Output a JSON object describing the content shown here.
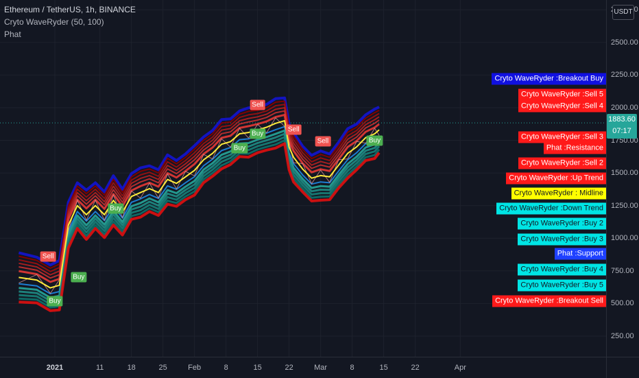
{
  "header": {
    "symbol_line": "Ethereum / TetherUS, 1h, BINANCE",
    "indicator_1": "Cryto WaveRyder  (50, 100)",
    "indicator_2": "Phat"
  },
  "price_axis": {
    "currency": "USDT",
    "current_price": "1883.60",
    "countdown": "07:17"
  },
  "side_labels": [
    {
      "text": "Cryto WaveRyder :Breakout Buy",
      "bg": "#1010e0",
      "fg": "#ffffff",
      "price": 2220
    },
    {
      "text": "Cryto WaveRyder :Sell 5",
      "bg": "#ff1a1a",
      "fg": "#ffffff",
      "price": 2100
    },
    {
      "text": "Cryto WaveRyder :Sell 4",
      "bg": "#ff1a1a",
      "fg": "#ffffff",
      "price": 2010
    },
    {
      "text": "Cryto WaveRyder :Sell 3",
      "bg": "#ff1a1a",
      "fg": "#ffffff",
      "price": 1775
    },
    {
      "text": "Phat :Resistance",
      "bg": "#ff1a1a",
      "fg": "#ffffff",
      "price": 1690
    },
    {
      "text": "Cryto WaveRyder :Sell 2",
      "bg": "#ff1a1a",
      "fg": "#ffffff",
      "price": 1575
    },
    {
      "text": "Cryto WaveRyder :Up Trend",
      "bg": "#ff1a1a",
      "fg": "#ffffff",
      "price": 1460
    },
    {
      "text": "Cryto WaveRyder : Midline",
      "bg": "#ffff00",
      "fg": "#131722",
      "price": 1345
    },
    {
      "text": "Cryto WaveRyder :Down Trend",
      "bg": "#00e5e5",
      "fg": "#131722",
      "price": 1230
    },
    {
      "text": "Cryto WaveRyder :Buy 2",
      "bg": "#00e5e5",
      "fg": "#131722",
      "price": 1110
    },
    {
      "text": "Cryto WaveRyder :Buy 3",
      "bg": "#00e5e5",
      "fg": "#131722",
      "price": 990
    },
    {
      "text": "Phat :Support",
      "bg": "#1e40ff",
      "fg": "#ffffff",
      "price": 880
    },
    {
      "text": "Cryto WaveRyder :Buy 4",
      "bg": "#00e5e5",
      "fg": "#131722",
      "price": 760
    },
    {
      "text": "Cryto WaveRyder :Buy 5",
      "bg": "#00e5e5",
      "fg": "#131722",
      "price": 640
    },
    {
      "text": "Cryto WaveRyder :Breakout Sell",
      "bg": "#ff1a1a",
      "fg": "#ffffff",
      "price": 520
    }
  ],
  "chart_data": {
    "type": "line",
    "title": "Ethereum / TetherUS, 1h, BINANCE",
    "y_ticks": [
      "250.00",
      "500.00",
      "750.00",
      "1000.00",
      "1250.00",
      "1500.00",
      "1750.00",
      "2000.00",
      "2250.00",
      "2500.00",
      "2750.00"
    ],
    "y_tick_values": [
      250,
      500,
      750,
      1000,
      1250,
      1500,
      1750,
      2000,
      2250,
      2500,
      2750
    ],
    "ylim": [
      0,
      2790
    ],
    "x_ticks": [
      {
        "label": "2021",
        "day": 0,
        "bold": true
      },
      {
        "label": "11",
        "day": 10
      },
      {
        "label": "18",
        "day": 17
      },
      {
        "label": "25",
        "day": 24
      },
      {
        "label": "Feb",
        "day": 31
      },
      {
        "label": "8",
        "day": 38
      },
      {
        "label": "15",
        "day": 45
      },
      {
        "label": "22",
        "day": 52
      },
      {
        "label": "Mar",
        "day": 59
      },
      {
        "label": "8",
        "day": 66
      },
      {
        "label": "15",
        "day": 73
      },
      {
        "label": "22",
        "day": 80
      },
      {
        "label": "Apr",
        "day": 90
      }
    ],
    "xlim": [
      -8,
      93
    ],
    "midline_x": [
      -8,
      -4,
      -1,
      1,
      3,
      5,
      7,
      9,
      11,
      13,
      15,
      17,
      19,
      21,
      23,
      25,
      27,
      29,
      31,
      33,
      35,
      37,
      39,
      41,
      43,
      45,
      47,
      49,
      51,
      52,
      53,
      55,
      57,
      59,
      61,
      63,
      65,
      67,
      69,
      71,
      72
    ],
    "midline_y": [
      700,
      680,
      620,
      640,
      1100,
      1250,
      1180,
      1250,
      1180,
      1290,
      1200,
      1320,
      1350,
      1380,
      1350,
      1450,
      1420,
      1470,
      1520,
      1600,
      1650,
      1720,
      1740,
      1800,
      1810,
      1830,
      1850,
      1880,
      1900,
      1700,
      1620,
      1530,
      1460,
      1480,
      1470,
      1560,
      1650,
      1700,
      1770,
      1800,
      1830
    ],
    "current_price": 1883.6,
    "signals": [
      {
        "text": "Sell",
        "kind": "sell",
        "day": -1.5,
        "price": 860
      },
      {
        "text": "Buy",
        "kind": "buy",
        "day": 0,
        "price": 520
      },
      {
        "text": "Buy",
        "kind": "buy",
        "day": 5.3,
        "price": 700
      },
      {
        "text": "Buy",
        "kind": "buy",
        "day": 13.5,
        "price": 1230
      },
      {
        "text": "Buy",
        "kind": "buy",
        "day": 41,
        "price": 1690
      },
      {
        "text": "Buy",
        "kind": "buy",
        "day": 45,
        "price": 1800
      },
      {
        "text": "Sell",
        "kind": "sell",
        "day": 45,
        "price": 2020
      },
      {
        "text": "Sell",
        "kind": "sell",
        "day": 53,
        "price": 1830
      },
      {
        "text": "Sell",
        "kind": "sell",
        "day": 59.5,
        "price": 1740
      },
      {
        "text": "Buy",
        "kind": "buy",
        "day": 71,
        "price": 1750
      }
    ]
  }
}
